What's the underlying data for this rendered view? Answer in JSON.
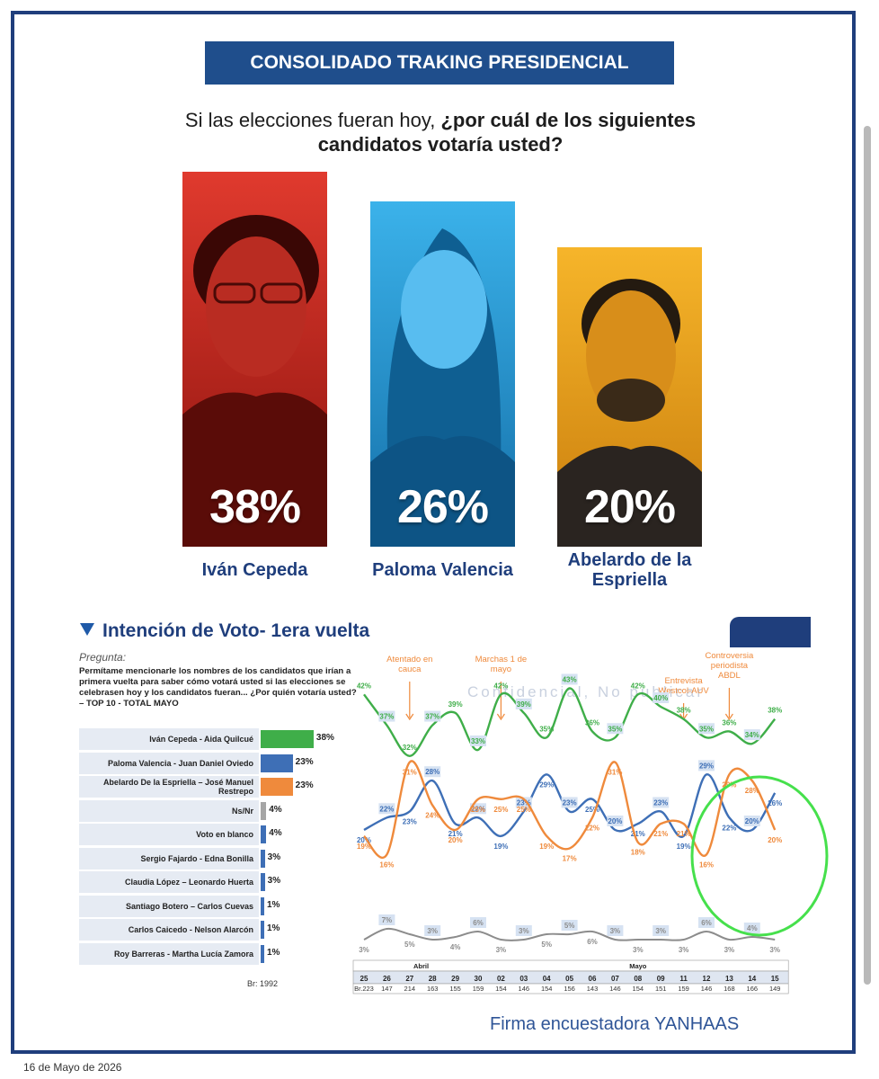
{
  "banner": "CONSOLIDADO TRAKING PRESIDENCIAL",
  "question": {
    "normal": "Si las elecciones fueran hoy, ",
    "bold": "¿por cuál de los siguientes candidatos votaría usted?"
  },
  "candidates": [
    {
      "name": "Iván Cepeda",
      "pct": "38%",
      "color": "#d8261d"
    },
    {
      "name": "Paloma Valencia",
      "pct": "26%",
      "color": "#2aa3e0"
    },
    {
      "name": "Abelardo de la Espriella",
      "pct": "20%",
      "color": "#f2a91d"
    }
  ],
  "section_title": "Intención de Voto- 1era vuelta",
  "pregunta_label": "Pregunta:",
  "pregunta_text": "Permítame mencionarle los nombres de los candidatos que irían a primera vuelta para saber cómo votará usted si las elecciones se celebrasen hoy y los candidatos fueran... ¿Por quién votaría usted? – TOP 10 - TOTAL MAYO",
  "br_total": "Br: 1992",
  "firma": "Firma encuestadora YANHAAS",
  "date": "16 de Mayo de 2026",
  "watermark": "Confidencial, No publicar",
  "colors": {
    "green": "#3fae49",
    "blue": "#3e6fb6",
    "orange": "#ef8a3c",
    "gray": "#8c8c8c",
    "navy": "#1f3e7c"
  },
  "chart_data": [
    {
      "type": "bar",
      "orientation": "horizontal",
      "categories": [
        "Iván Cepeda - Aida Quilcué",
        "Paloma Valencia - Juan Daniel Oviedo",
        "Abelardo De la Espriella – José Manuel Restrepo",
        "Ns/Nr",
        "Voto en blanco",
        "Sergio Fajardo - Edna Bonilla",
        "Claudia López – Leonardo Huerta",
        "Santiago Botero – Carlos Cuevas",
        "Carlos Caicedo - Nelson Alarcón",
        "Roy Barreras - Martha Lucía Zamora"
      ],
      "values": [
        38,
        23,
        23,
        4,
        4,
        3,
        3,
        1,
        1,
        1
      ],
      "labels": [
        "38%",
        "23%",
        "23%",
        "4%",
        "4%",
        "3%",
        "3%",
        "1%",
        "1%",
        "1%"
      ],
      "colors": [
        "#3fae49",
        "#3e6fb6",
        "#ef8a3c",
        "#a6a6a6",
        "#3e6fb6",
        "#3e6fb6",
        "#3e6fb6",
        "#3e6fb6",
        "#3e6fb6",
        "#3e6fb6"
      ]
    },
    {
      "type": "line",
      "months": [
        {
          "label": "Abril",
          "span": [
            0,
            5
          ]
        },
        {
          "label": "Mayo",
          "span": [
            6,
            19
          ]
        }
      ],
      "x": [
        "25",
        "26",
        "27",
        "28",
        "29",
        "30",
        "02",
        "03",
        "04",
        "05",
        "06",
        "07",
        "08",
        "09",
        "11",
        "12",
        "13",
        "14",
        "15"
      ],
      "base": [
        "Br.223",
        "147",
        "214",
        "163",
        "155",
        "159",
        "154",
        "146",
        "154",
        "156",
        "143",
        "146",
        "154",
        "151",
        "159",
        "146",
        "168",
        "166",
        "149"
      ],
      "series": [
        {
          "color": "#3fae49",
          "values": [
            42,
            37,
            32,
            37,
            39,
            33,
            42,
            39,
            35,
            43,
            36,
            35,
            42,
            40,
            38,
            35,
            36,
            34,
            38
          ]
        },
        {
          "color": "#3e6fb6",
          "values": [
            20,
            22,
            23,
            28,
            21,
            22,
            19,
            23,
            29,
            23,
            25,
            20,
            21,
            23,
            19,
            29,
            22,
            20,
            26
          ]
        },
        {
          "color": "#ef8a3c",
          "values": [
            19,
            16,
            31,
            24,
            20,
            25,
            25,
            25,
            19,
            17,
            22,
            31,
            18,
            21,
            21,
            16,
            29,
            28,
            20
          ]
        },
        {
          "color": "#8c8c8c",
          "values": [
            3,
            7,
            5,
            3,
            4,
            6,
            3,
            3,
            5,
            5,
            6,
            3,
            3,
            3,
            3,
            6,
            3,
            4,
            3
          ]
        }
      ],
      "annotations": [
        {
          "text": "Atentado en cauca",
          "at": "27"
        },
        {
          "text": "Marchas 1 de mayo",
          "at": "02"
        },
        {
          "text": "Entrevista Westcol-AUV",
          "at": "11"
        },
        {
          "text": "Controversia periodista ABDL",
          "at": "13"
        }
      ]
    }
  ]
}
